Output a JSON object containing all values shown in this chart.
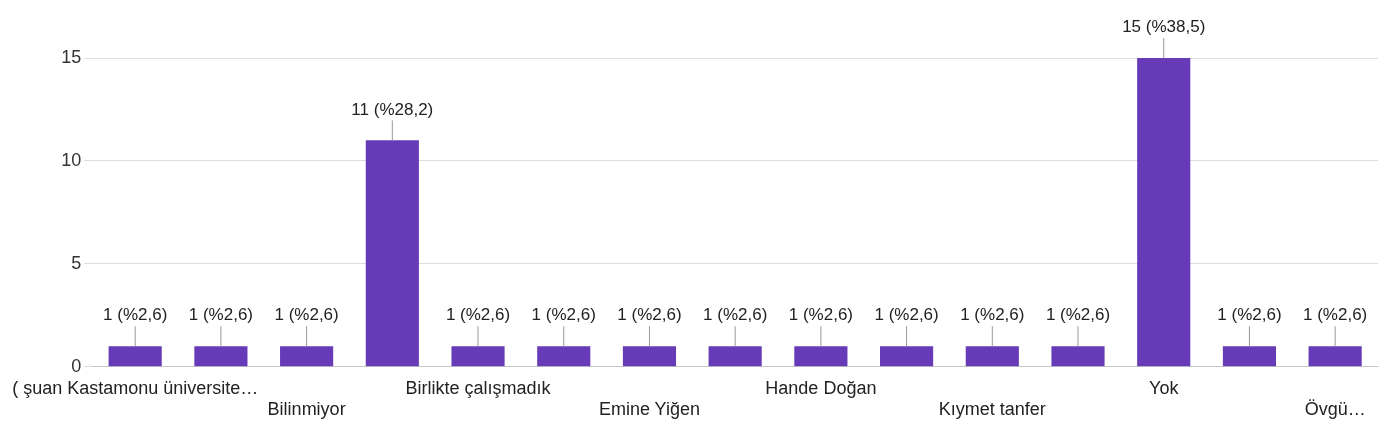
{
  "chart_data": {
    "type": "bar",
    "categories": [
      "( şuan Kastamonu üniversite…",
      null,
      "Bilinmiyor",
      null,
      "Birlikte çalışmadık",
      null,
      "Emine Yiğen",
      null,
      "Hande Doğan",
      null,
      "Kıymet tanfer",
      null,
      "Yok",
      null,
      "Övgü…"
    ],
    "values": [
      1,
      1,
      1,
      11,
      1,
      1,
      1,
      1,
      1,
      1,
      1,
      1,
      15,
      1,
      1
    ],
    "value_labels": [
      "1 (%2,6)",
      "1 (%2,6)",
      "1 (%2,6)",
      "11 (%28,2)",
      "1 (%2,6)",
      "1 (%2,6)",
      "1 (%2,6)",
      "1 (%2,6)",
      "1 (%2,6)",
      "1 (%2,6)",
      "1 (%2,6)",
      "1 (%2,6)",
      "15 (%38,5)",
      "1 (%2,6)",
      "1 (%2,6)"
    ],
    "color": "#673ab7",
    "ylim": [
      0,
      15
    ],
    "yticks": [
      0,
      5,
      10,
      15
    ],
    "grid": "y",
    "legend": false
  }
}
